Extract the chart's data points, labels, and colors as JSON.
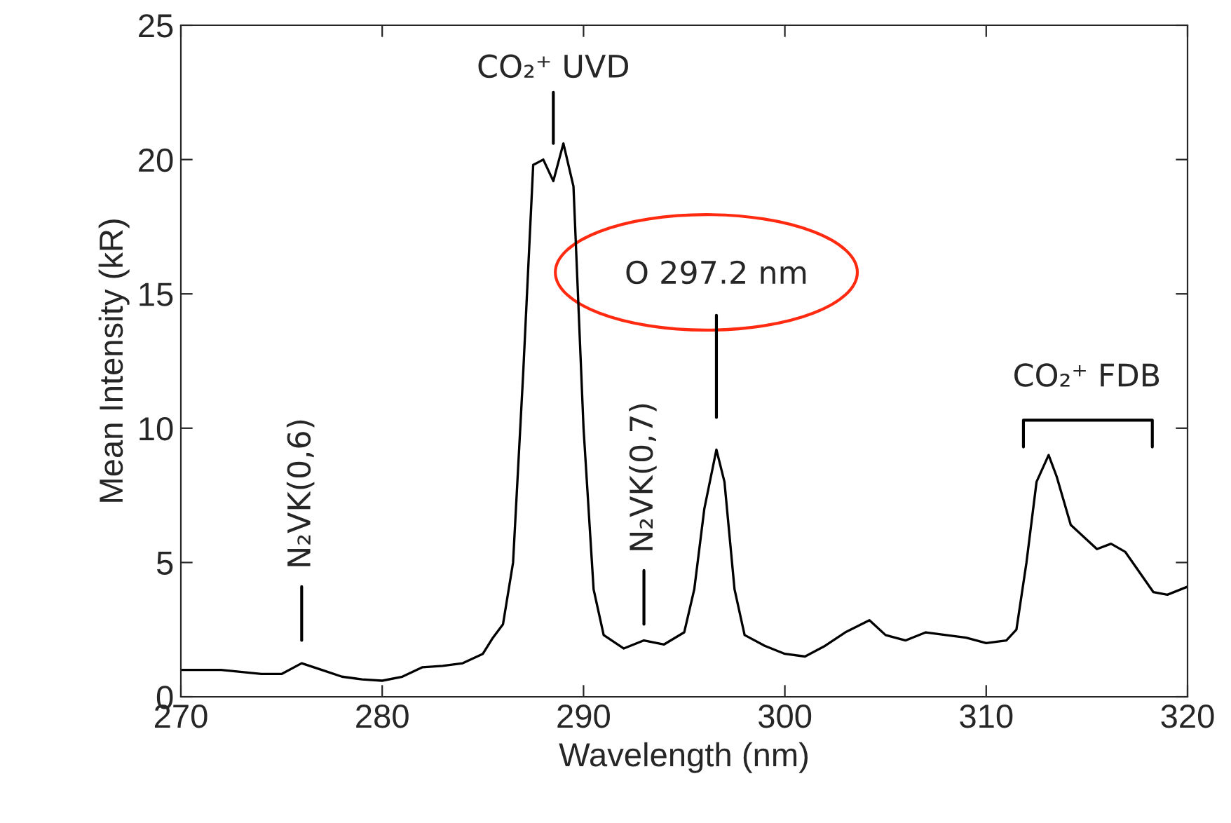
{
  "chart_data": {
    "type": "line",
    "xlabel": "Wavelength (nm)",
    "ylabel": "Mean Intensity (kR)",
    "xlim": [
      270,
      320
    ],
    "xticks": [
      270,
      280,
      290,
      300,
      310,
      320
    ],
    "ylim": [
      0,
      25
    ],
    "yticks": [
      0,
      5,
      10,
      15,
      20,
      25
    ],
    "grid": false,
    "legend": false,
    "marker": "none",
    "line_style": "solid",
    "x": [
      270,
      272,
      274,
      275,
      276,
      277,
      278,
      279,
      280,
      281,
      282,
      283,
      284,
      285,
      285.5,
      286,
      286.5,
      287,
      287.5,
      288,
      288.5,
      289,
      289.5,
      290,
      290.5,
      291,
      292,
      293,
      294,
      295,
      295.5,
      296,
      296.6,
      297,
      297.5,
      298,
      299,
      300,
      301,
      302,
      303,
      304.2,
      305,
      306,
      307,
      308,
      309,
      310,
      311,
      311.5,
      312,
      312.5,
      313.1,
      313.5,
      314.2,
      315.5,
      316.2,
      316.9,
      318.3,
      319,
      320
    ],
    "series": [
      {
        "color": "#000000",
        "values": [
          1.0,
          1.0,
          0.85,
          0.85,
          1.25,
          1.0,
          0.75,
          0.65,
          0.6,
          0.75,
          1.1,
          1.15,
          1.25,
          1.6,
          2.2,
          2.7,
          5,
          12,
          19.8,
          20.0,
          19.2,
          20.6,
          19,
          10,
          4,
          2.3,
          1.8,
          2.1,
          1.95,
          2.4,
          4,
          7,
          9.2,
          8,
          4,
          2.3,
          1.9,
          1.6,
          1.5,
          1.9,
          2.4,
          2.85,
          2.3,
          2.1,
          2.4,
          2.3,
          2.2,
          2.0,
          2.1,
          2.5,
          5,
          8,
          9.0,
          8.2,
          6.4,
          5.5,
          5.7,
          5.4,
          3.9,
          3.8,
          4.1
        ]
      }
    ],
    "annotations": [
      "CO₂⁺ UVD",
      "O 297.2 nm",
      "N₂VK(0,6)",
      "N₂VK(0,7)",
      "CO₂⁺ FDB"
    ]
  }
}
